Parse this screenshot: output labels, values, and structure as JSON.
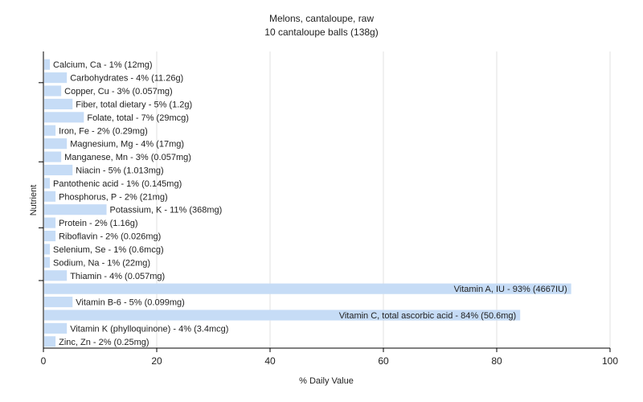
{
  "chart_data": {
    "type": "bar",
    "orientation": "horizontal",
    "title": "Melons, cantaloupe, raw",
    "subtitle": "10 cantaloupe balls (138g)",
    "xlabel": "% Daily Value",
    "ylabel": "Nutrient",
    "xlim": [
      0,
      100
    ],
    "xticks": [
      0,
      20,
      40,
      60,
      80,
      100
    ],
    "grid": true,
    "bar_color": "#c6dcf6",
    "categories": [
      "Calcium, Ca",
      "Carbohydrates",
      "Copper, Cu",
      "Fiber, total dietary",
      "Folate, total",
      "Iron, Fe",
      "Magnesium, Mg",
      "Manganese, Mn",
      "Niacin",
      "Pantothenic acid",
      "Phosphorus, P",
      "Potassium, K",
      "Protein",
      "Riboflavin",
      "Selenium, Se",
      "Sodium, Na",
      "Thiamin",
      "Vitamin A, IU",
      "Vitamin B-6",
      "Vitamin C, total ascorbic acid",
      "Vitamin K (phylloquinone)",
      "Zinc, Zn"
    ],
    "values": [
      1,
      4,
      3,
      5,
      7,
      2,
      4,
      3,
      5,
      1,
      2,
      11,
      2,
      2,
      1,
      1,
      4,
      93,
      5,
      84,
      4,
      2
    ],
    "labels": [
      "Calcium, Ca - 1% (12mg)",
      "Carbohydrates - 4% (11.26g)",
      "Copper, Cu - 3% (0.057mg)",
      "Fiber, total dietary - 5% (1.2g)",
      "Folate, total - 7% (29mcg)",
      "Iron, Fe - 2% (0.29mg)",
      "Magnesium, Mg - 4% (17mg)",
      "Manganese, Mn - 3% (0.057mg)",
      "Niacin - 5% (1.013mg)",
      "Pantothenic acid - 1% (0.145mg)",
      "Phosphorus, P - 2% (21mg)",
      "Potassium, K - 11% (368mg)",
      "Protein - 2% (1.16g)",
      "Riboflavin - 2% (0.026mg)",
      "Selenium, Se - 1% (0.6mcg)",
      "Sodium, Na - 1% (22mg)",
      "Thiamin - 4% (0.057mg)",
      "Vitamin A, IU - 93% (4667IU)",
      "Vitamin B-6 - 5% (0.099mg)",
      "Vitamin C, total ascorbic acid - 84% (50.6mg)",
      "Vitamin K (phylloquinone) - 4% (3.4mcg)",
      "Zinc, Zn - 2% (0.25mg)"
    ]
  }
}
